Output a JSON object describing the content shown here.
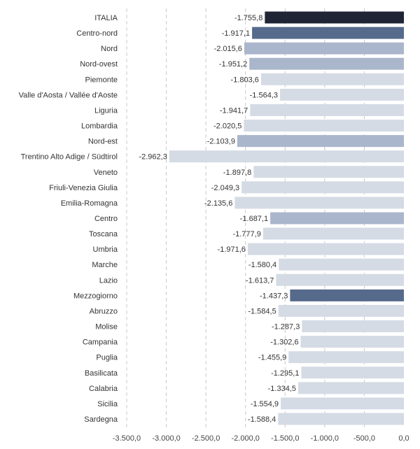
{
  "chart_data": {
    "type": "bar",
    "orientation": "horizontal",
    "title": "",
    "xlabel": "",
    "ylabel": "",
    "xlim": [
      -3500,
      0
    ],
    "x_ticks": [
      -3500,
      -3000,
      -2500,
      -2000,
      -1500,
      -1000,
      -500,
      0
    ],
    "x_tick_labels": [
      "-3.500,0",
      "-3.000,0",
      "-2.500,0",
      "-2.000,0",
      "-1.500,0",
      "-1.000,0",
      "-500,0",
      "0,0"
    ],
    "grid": "vertical dashed",
    "categories": [
      "ITALIA",
      "Centro-nord",
      "Nord",
      "Nord-ovest",
      "Piemonte",
      "Valle d'Aosta / Vallée d'Aoste",
      "Liguria",
      "Lombardia",
      "Nord-est",
      "Trentino Alto Adige / Südtirol",
      "Veneto",
      "Friuli-Venezia Giulia",
      "Emilia-Romagna",
      "Centro",
      "Toscana",
      "Umbria",
      "Marche",
      "Lazio",
      "Mezzogiorno",
      "Abruzzo",
      "Molise",
      "Campania",
      "Puglia",
      "Basilicata",
      "Calabria",
      "Sicilia",
      "Sardegna"
    ],
    "values": [
      -1755.8,
      -1917.1,
      -2015.6,
      -1951.2,
      -1803.6,
      -1564.3,
      -1941.7,
      -2020.5,
      -2103.9,
      -2962.3,
      -1897.8,
      -2049.3,
      -2135.6,
      -1687.1,
      -1777.9,
      -1971.6,
      -1580.4,
      -1613.7,
      -1437.3,
      -1584.5,
      -1287.3,
      -1302.6,
      -1455.9,
      -1295.1,
      -1334.5,
      -1554.9,
      -1588.4
    ],
    "value_labels": [
      "-1.755,8",
      "-1.917,1",
      "-2.015,6",
      "-1.951,2",
      "-1.803,6",
      "-1.564,3",
      "-1.941,7",
      "-2.020,5",
      "-2.103,9",
      "-2.962,3",
      "-1.897,8",
      "-2.049,3",
      "-2.135,6",
      "-1.687,1",
      "-1.777,9",
      "-1.971,6",
      "-1.580,4",
      "-1.613,7",
      "-1.437,3",
      "-1.584,5",
      "-1.287,3",
      "-1.302,6",
      "-1.455,9",
      "-1.295,1",
      "-1.334,5",
      "-1.554,9",
      "-1.588,4"
    ],
    "levels": [
      "country",
      "macro",
      "area",
      "area",
      "region",
      "region",
      "region",
      "region",
      "area",
      "region",
      "region",
      "region",
      "region",
      "area",
      "region",
      "region",
      "region",
      "region",
      "macro",
      "region",
      "region",
      "region",
      "region",
      "region",
      "region",
      "region",
      "region"
    ],
    "colors": {
      "country": "#1f2535",
      "macro": "#566a8c",
      "area": "#aab6cb",
      "region": "#d5dbe4",
      "grid": "#c8c8c8"
    }
  }
}
